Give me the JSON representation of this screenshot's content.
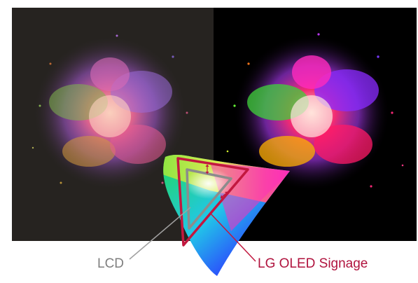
{
  "labels": {
    "lcd": "LCD",
    "oled": "LG OLED Signage"
  },
  "colors": {
    "lcd_outline": "#8c8c8c",
    "oled_outline": "#c2183f",
    "left_background": "#262320",
    "right_background": "#000000"
  }
}
